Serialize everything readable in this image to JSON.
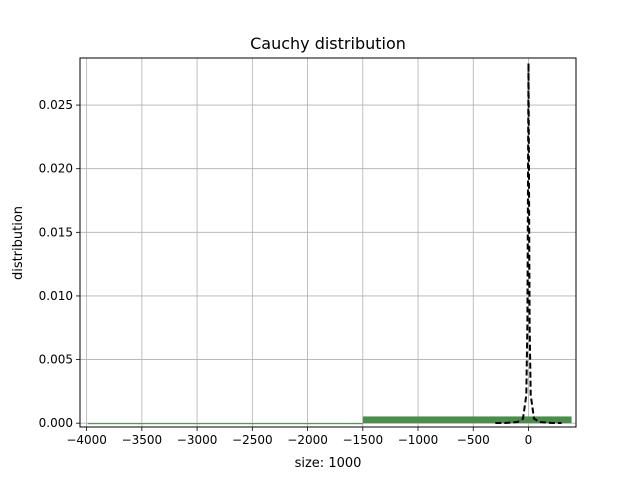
{
  "chart_data": {
    "type": "bar",
    "title": "Cauchy distribution",
    "xlabel": "size: 1000",
    "ylabel": "distribution",
    "xlim": [
      -4060,
      430
    ],
    "ylim": [
      -0.0003,
      0.0287
    ],
    "grid": true,
    "x_ticks": [
      -4000,
      -3500,
      -3000,
      -2500,
      -2000,
      -1500,
      -1000,
      -500,
      0
    ],
    "x_tick_labels": [
      "−4000",
      "−3500",
      "−3000",
      "−2500",
      "−2000",
      "−1500",
      "−1000",
      "−500",
      "0"
    ],
    "y_ticks": [
      0.0,
      0.005,
      0.01,
      0.015,
      0.02,
      0.025
    ],
    "y_tick_labels": [
      "0.000",
      "0.005",
      "0.010",
      "0.015",
      "0.020",
      "0.025"
    ],
    "bar_color": "#4c8c4c",
    "line_color": "#000000",
    "histogram": {
      "bins": [
        {
          "x0": -3990,
          "x1": -1500,
          "height": 0.0
        },
        {
          "x0": -1500,
          "x1": 390,
          "height": 0.00053
        }
      ]
    },
    "density_curve": {
      "style": "dashed",
      "x": [
        -300,
        -200,
        -100,
        -50,
        -20,
        -10,
        0,
        10,
        20,
        50,
        100,
        200,
        300
      ],
      "y": [
        1e-05,
        2e-05,
        9e-05,
        0.00036,
        0.0022,
        0.0078,
        0.0283,
        0.0078,
        0.0022,
        0.00036,
        9e-05,
        2e-05,
        1e-05
      ]
    }
  }
}
